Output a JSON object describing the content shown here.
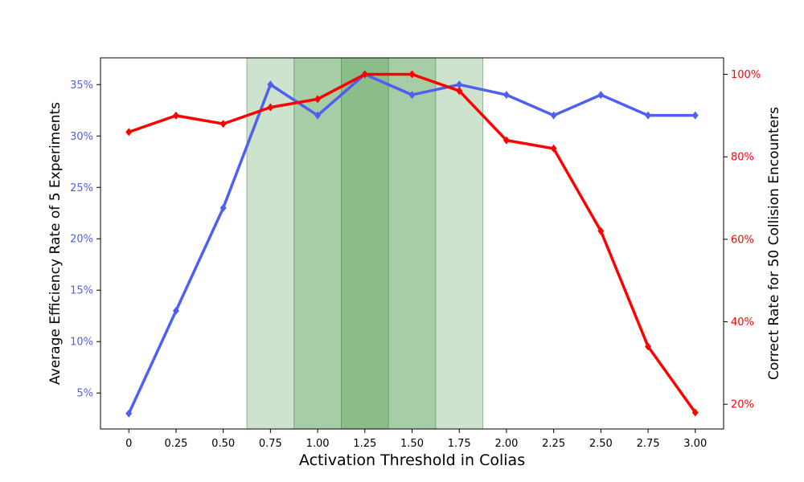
{
  "chart_data": {
    "type": "line",
    "xlabel": "Activation Threshold in Colias",
    "ylabel_left": "Average Efficiency Rate of 5 Experiments",
    "ylabel_right": "Correct Rate for 50 Collision Encounters",
    "x": [
      0,
      0.25,
      0.5,
      0.75,
      1.0,
      1.25,
      1.5,
      1.75,
      2.0,
      2.25,
      2.5,
      2.75,
      3.0
    ],
    "x_tick_labels": [
      "0",
      "0.25",
      "0.50",
      "0.75",
      "1.00",
      "1.25",
      "1.50",
      "1.75",
      "2.00",
      "2.25",
      "2.50",
      "2.75",
      "3.00"
    ],
    "xlim": [
      -0.15,
      3.15
    ],
    "left_axis": {
      "ylim": [
        0.015,
        0.376
      ],
      "ticks": [
        0.05,
        0.1,
        0.15,
        0.2,
        0.25,
        0.3,
        0.35
      ],
      "tick_labels": [
        "5%",
        "10%",
        "15%",
        "20%",
        "25%",
        "30%",
        "35%"
      ],
      "color": "#5060ee"
    },
    "right_axis": {
      "ylim": [
        0.14,
        1.04
      ],
      "ticks": [
        0.2,
        0.4,
        0.6,
        0.8,
        1.0
      ],
      "tick_labels": [
        "20%",
        "40%",
        "60%",
        "80%",
        "100%"
      ],
      "color": "#ff0000"
    },
    "series": [
      {
        "axis": "left",
        "color": "#4f5ff2",
        "marker": "diamond",
        "values": [
          0.03,
          0.13,
          0.23,
          0.35,
          0.32,
          0.36,
          0.34,
          0.35,
          0.34,
          0.32,
          0.34,
          0.32,
          0.32
        ]
      },
      {
        "axis": "right",
        "color": "#ff0000",
        "marker": "diamond",
        "values": [
          0.86,
          0.9,
          0.88,
          0.92,
          0.94,
          1.0,
          1.0,
          0.96,
          0.84,
          0.82,
          0.62,
          0.34,
          0.18
        ]
      }
    ],
    "shaded_bands": [
      {
        "x0": 0.625,
        "x1": 1.875,
        "color": "#2e8b2e",
        "opacity": 0.24
      },
      {
        "x0": 0.875,
        "x1": 1.625,
        "color": "#2e8b2e",
        "opacity": 0.24
      },
      {
        "x0": 1.125,
        "x1": 1.375,
        "color": "#2e8b2e",
        "opacity": 0.24
      }
    ],
    "grid": false,
    "legend": "none"
  }
}
